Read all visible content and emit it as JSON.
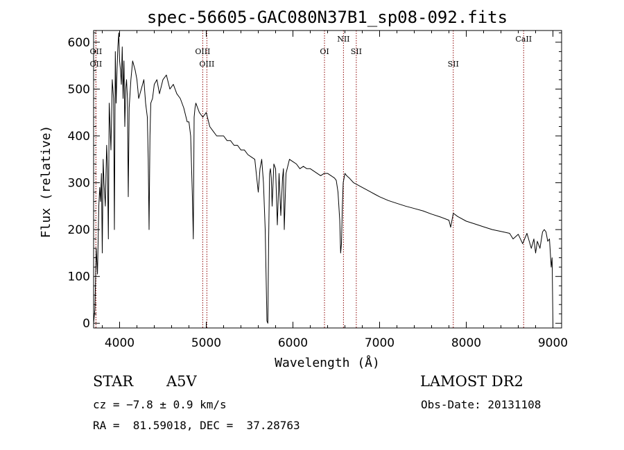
{
  "chart_data": {
    "type": "line",
    "title": "spec-56605-GAC080N37B1_sp08-092.fits",
    "xlabel": "Wavelength (Å)",
    "ylabel": "Flux (relative)",
    "xlim": [
      3700,
      9100
    ],
    "ylim": [
      -10,
      625
    ],
    "x_ticks": [
      4000,
      5000,
      6000,
      7000,
      8000,
      9000
    ],
    "y_ticks": [
      0,
      100,
      200,
      300,
      400,
      500,
      600
    ],
    "grid": false,
    "legend": "none",
    "series": [
      {
        "x": [
          3700,
          3715,
          3730,
          3745,
          3760,
          3770,
          3780,
          3790,
          3800,
          3810,
          3820,
          3835,
          3850,
          3860,
          3870,
          3880,
          3890,
          3900,
          3915,
          3930,
          3940,
          3950,
          3960,
          3970,
          3980,
          3990,
          4000,
          4010,
          4020,
          4030,
          4040,
          4050,
          4060,
          4070,
          4080,
          4090,
          4100,
          4110,
          4130,
          4150,
          4180,
          4200,
          4220,
          4250,
          4280,
          4300,
          4320,
          4330,
          4340,
          4350,
          4360,
          4380,
          4400,
          4430,
          4460,
          4500,
          4540,
          4580,
          4620,
          4660,
          4700,
          4740,
          4780,
          4800,
          4820,
          4840,
          4850,
          4860,
          4870,
          4880,
          4900,
          4920,
          4960,
          5000,
          5040,
          5080,
          5120,
          5160,
          5200,
          5240,
          5280,
          5320,
          5360,
          5400,
          5440,
          5480,
          5520,
          5560,
          5600,
          5620,
          5640,
          5660,
          5680,
          5690,
          5700,
          5710,
          5720,
          5730,
          5740,
          5750,
          5760,
          5780,
          5800,
          5820,
          5840,
          5860,
          5880,
          5890,
          5900,
          5920,
          5960,
          6000,
          6040,
          6080,
          6120,
          6160,
          6200,
          6240,
          6280,
          6320,
          6360,
          6400,
          6440,
          6480,
          6500,
          6520,
          6540,
          6550,
          6560,
          6570,
          6580,
          6600,
          6620,
          6650,
          6700,
          6750,
          6800,
          6850,
          6900,
          6950,
          7000,
          7100,
          7200,
          7300,
          7400,
          7500,
          7600,
          7700,
          7800,
          7820,
          7850,
          7900,
          8000,
          8100,
          8200,
          8300,
          8400,
          8500,
          8540,
          8600,
          8650,
          8700,
          8750,
          8780,
          8800,
          8820,
          8850,
          8880,
          8900,
          8920,
          8940,
          8960,
          8980,
          8990,
          9000
        ],
        "y": [
          0,
          30,
          160,
          105,
          250,
          290,
          260,
          320,
          150,
          350,
          300,
          250,
          380,
          330,
          180,
          470,
          420,
          370,
          520,
          480,
          200,
          580,
          470,
          540,
          590,
          620,
          560,
          540,
          510,
          590,
          480,
          560,
          420,
          500,
          520,
          480,
          270,
          460,
          520,
          560,
          540,
          520,
          480,
          500,
          520,
          470,
          440,
          350,
          200,
          400,
          470,
          480,
          510,
          520,
          490,
          520,
          530,
          500,
          510,
          490,
          480,
          460,
          430,
          430,
          400,
          270,
          180,
          440,
          460,
          470,
          460,
          450,
          440,
          450,
          420,
          410,
          400,
          400,
          400,
          390,
          390,
          380,
          380,
          370,
          370,
          360,
          355,
          350,
          280,
          330,
          350,
          300,
          200,
          100,
          5,
          0,
          180,
          320,
          330,
          310,
          250,
          340,
          330,
          210,
          320,
          230,
          310,
          330,
          200,
          320,
          350,
          345,
          340,
          330,
          335,
          330,
          330,
          325,
          320,
          315,
          320,
          320,
          315,
          310,
          305,
          280,
          220,
          150,
          170,
          250,
          300,
          320,
          315,
          310,
          300,
          295,
          290,
          285,
          280,
          275,
          270,
          262,
          256,
          250,
          245,
          240,
          233,
          227,
          220,
          205,
          235,
          228,
          218,
          212,
          206,
          200,
          196,
          192,
          180,
          190,
          170,
          192,
          160,
          180,
          150,
          175,
          160,
          195,
          200,
          195,
          175,
          180,
          120,
          140,
          0
        ]
      }
    ],
    "spectral_lines": [
      {
        "label": "OII",
        "x": 3727,
        "row": 1
      },
      {
        "label": "OII",
        "x": 3727,
        "row": 2
      },
      {
        "label": "OIII",
        "x": 4959,
        "row": 1
      },
      {
        "label": "OIII",
        "x": 5007,
        "row": 2
      },
      {
        "label": "OI",
        "x": 6364,
        "row": 1
      },
      {
        "label": "NII",
        "x": 6583,
        "row": 0
      },
      {
        "label": "SII",
        "x": 6731,
        "row": 1
      },
      {
        "label": "SII",
        "x": 7850,
        "row": 2
      },
      {
        "label": "CaII",
        "x": 8662,
        "row": 0
      }
    ]
  },
  "info": {
    "object_class": "STAR",
    "subclass": "A5V",
    "survey": "LAMOST DR2",
    "redshift": "cz = −7.8 ± 0.9 km/s",
    "obs_date": "Obs-Date: 20131108",
    "coords": "RA =  81.59018, DEC =  37.28763"
  },
  "colors": {
    "spectrum": "#000000",
    "line_marker": "#8b0000",
    "axis": "#000000",
    "background": "#ffffff"
  }
}
